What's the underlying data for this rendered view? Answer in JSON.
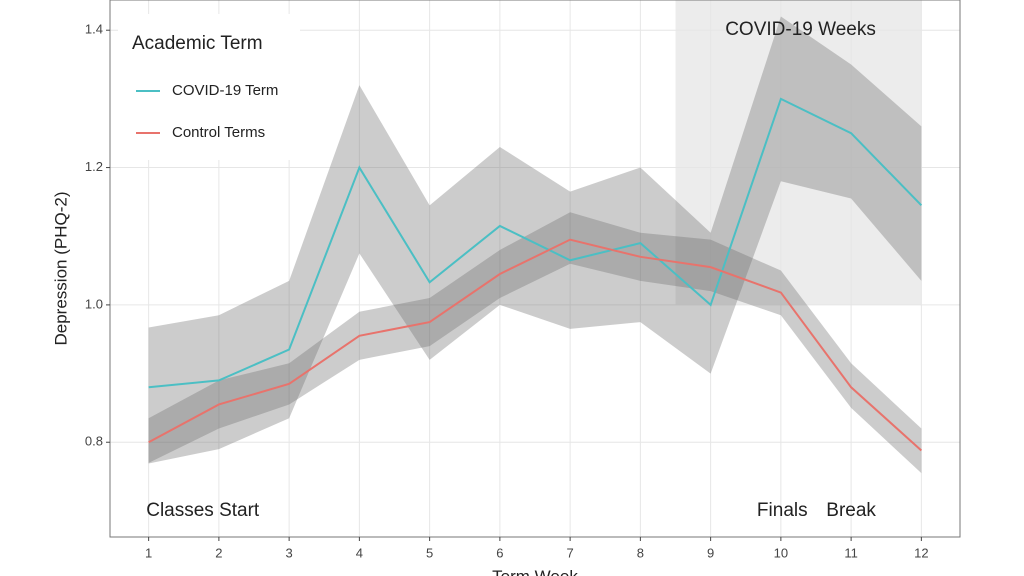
{
  "chart_data": {
    "type": "line",
    "y_label": "Depression (PHQ-2)",
    "x_label": "Term Week",
    "x": [
      1,
      2,
      3,
      4,
      5,
      6,
      7,
      8,
      9,
      10,
      11,
      12
    ],
    "xlim": [
      0.45,
      12.55
    ],
    "xticks": [
      1,
      2,
      3,
      4,
      5,
      6,
      7,
      8,
      9,
      10,
      11,
      12
    ],
    "ylim": [
      0.662,
      1.444
    ],
    "yticks": [
      {
        "value": 0.8,
        "label": "0.8"
      },
      {
        "value": 1.0,
        "label": "1.0"
      },
      {
        "value": 1.2,
        "label": "1.2"
      },
      {
        "value": 1.4,
        "label": "1.4"
      }
    ],
    "grid": true,
    "legend_title": "Academic Term",
    "legend_position": "top-left",
    "band_color": "#6e6e6e",
    "series": [
      {
        "name": "COVID-19 Term",
        "color": "#4bbfc4",
        "values": [
          0.88,
          0.89,
          0.935,
          1.2,
          1.033,
          1.115,
          1.065,
          1.09,
          1.0,
          1.3,
          1.25,
          1.145
        ],
        "upper": [
          0.967,
          0.985,
          1.035,
          1.32,
          1.145,
          1.23,
          1.165,
          1.2,
          1.105,
          1.42,
          1.35,
          1.26
        ],
        "lower": [
          0.769,
          0.79,
          0.835,
          1.075,
          0.92,
          1.0,
          0.965,
          0.975,
          0.9,
          1.18,
          1.155,
          1.035
        ]
      },
      {
        "name": "Control Terms",
        "color": "#e8736c",
        "values": [
          0.8,
          0.855,
          0.885,
          0.955,
          0.975,
          1.045,
          1.095,
          1.07,
          1.055,
          1.018,
          0.88,
          0.788
        ],
        "upper": [
          0.835,
          0.89,
          0.915,
          0.99,
          1.01,
          1.08,
          1.135,
          1.105,
          1.095,
          1.05,
          0.915,
          0.82
        ],
        "lower": [
          0.77,
          0.82,
          0.855,
          0.92,
          0.94,
          1.01,
          1.06,
          1.035,
          1.02,
          0.985,
          0.85,
          0.755
        ]
      }
    ],
    "shaded_region": {
      "x": [
        8.5,
        12.0
      ],
      "y": [
        1.0,
        1.444
      ],
      "color": "#ececec"
    },
    "annotations": [
      {
        "text": "COVID-19 Weeks",
        "x": 10.28,
        "y": 1.4
      },
      {
        "text": "Classes Start",
        "x": 1.77,
        "y": 0.7
      },
      {
        "text": "Finals",
        "x": 10.02,
        "y": 0.7
      },
      {
        "text": "Break",
        "x": 11.0,
        "y": 0.7
      }
    ]
  }
}
